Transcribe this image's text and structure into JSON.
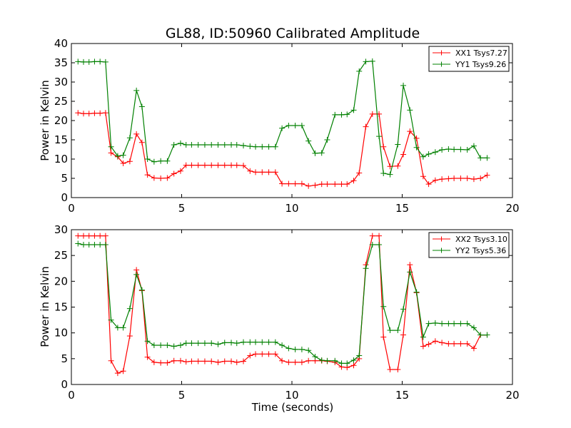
{
  "chart_data": [
    {
      "type": "line",
      "title": "GL88, ID:50960 Calibrated Amplitude",
      "xlabel": "",
      "ylabel": "Power in Kelvin",
      "xlim": [
        0,
        20
      ],
      "ylim": [
        0,
        40
      ],
      "xticks": [
        0,
        5,
        10,
        15,
        20
      ],
      "yticks": [
        0,
        5,
        10,
        15,
        20,
        25,
        30,
        35,
        40
      ],
      "grid": false,
      "legend_position": "top-right",
      "series": [
        {
          "name": "XX1 Tsys7.27",
          "color": "#ff0000",
          "x": [
            0.3,
            0.55,
            0.8,
            1.05,
            1.3,
            1.55,
            1.8,
            2.1,
            2.35,
            2.65,
            2.95,
            3.2,
            3.45,
            3.75,
            4.05,
            4.35,
            4.65,
            4.95,
            5.2,
            5.45,
            5.75,
            6.05,
            6.35,
            6.65,
            6.95,
            7.25,
            7.5,
            7.8,
            8.1,
            8.35,
            8.65,
            8.95,
            9.25,
            9.55,
            9.85,
            10.15,
            10.45,
            10.75,
            11.05,
            11.35,
            11.6,
            11.95,
            12.25,
            12.5,
            12.8,
            13.05,
            13.35,
            13.65,
            13.95,
            14.15,
            14.45,
            14.8,
            15.05,
            15.35,
            15.65,
            15.95,
            16.2,
            16.5,
            16.8,
            17.1,
            17.35,
            17.65,
            17.95,
            18.25,
            18.55,
            18.85
          ],
          "values": [
            22.0,
            21.8,
            21.8,
            21.9,
            21.9,
            22.0,
            11.6,
            10.6,
            8.9,
            9.4,
            16.5,
            14.3,
            5.9,
            5.1,
            5.0,
            5.1,
            6.2,
            6.9,
            8.4,
            8.4,
            8.4,
            8.4,
            8.4,
            8.4,
            8.4,
            8.4,
            8.4,
            8.3,
            6.9,
            6.6,
            6.6,
            6.6,
            6.6,
            3.6,
            3.6,
            3.6,
            3.6,
            3.0,
            3.2,
            3.5,
            3.5,
            3.5,
            3.5,
            3.5,
            4.4,
            6.4,
            18.4,
            21.7,
            21.7,
            13.2,
            8.1,
            8.2,
            11.2,
            17.2,
            15.4,
            5.5,
            3.5,
            4.5,
            4.8,
            4.9,
            5.0,
            5.0,
            5.0,
            4.8,
            5.0,
            5.8
          ]
        },
        {
          "name": "YY1 Tsys9.26",
          "color": "#008000",
          "x": [
            0.3,
            0.55,
            0.8,
            1.05,
            1.3,
            1.55,
            1.8,
            2.1,
            2.35,
            2.65,
            2.95,
            3.2,
            3.45,
            3.75,
            4.05,
            4.35,
            4.65,
            4.95,
            5.2,
            5.45,
            5.75,
            6.05,
            6.35,
            6.65,
            6.95,
            7.25,
            7.5,
            7.8,
            8.1,
            8.35,
            8.65,
            8.95,
            9.25,
            9.55,
            9.85,
            10.15,
            10.45,
            10.75,
            11.05,
            11.35,
            11.6,
            11.95,
            12.25,
            12.5,
            12.8,
            13.05,
            13.35,
            13.65,
            13.95,
            14.15,
            14.45,
            14.8,
            15.05,
            15.35,
            15.65,
            15.95,
            16.2,
            16.5,
            16.8,
            17.1,
            17.35,
            17.65,
            17.95,
            18.25,
            18.55,
            18.85
          ],
          "values": [
            35.3,
            35.2,
            35.2,
            35.3,
            35.3,
            35.2,
            13.2,
            10.8,
            11.0,
            15.5,
            27.8,
            23.6,
            10.0,
            9.3,
            9.5,
            9.5,
            13.7,
            14.1,
            13.7,
            13.7,
            13.7,
            13.7,
            13.7,
            13.7,
            13.7,
            13.7,
            13.7,
            13.5,
            13.3,
            13.2,
            13.2,
            13.2,
            13.2,
            18.0,
            18.7,
            18.7,
            18.7,
            14.7,
            11.5,
            11.6,
            15.0,
            21.5,
            21.5,
            21.6,
            22.7,
            32.8,
            35.3,
            35.4,
            15.9,
            6.3,
            6.0,
            13.8,
            29.1,
            22.7,
            13.0,
            10.6,
            11.3,
            11.8,
            12.4,
            12.6,
            12.5,
            12.5,
            12.4,
            13.4,
            10.3,
            10.3
          ]
        }
      ]
    },
    {
      "type": "line",
      "title": "",
      "xlabel": "Time (seconds)",
      "ylabel": "Power in Kelvin",
      "xlim": [
        0,
        20
      ],
      "ylim": [
        0,
        30
      ],
      "xticks": [
        0,
        5,
        10,
        15,
        20
      ],
      "yticks": [
        0,
        5,
        10,
        15,
        20,
        25,
        30
      ],
      "grid": false,
      "legend_position": "top-right",
      "series": [
        {
          "name": "XX2 Tsys3.10",
          "color": "#ff0000",
          "x": [
            0.3,
            0.55,
            0.8,
            1.05,
            1.3,
            1.55,
            1.8,
            2.1,
            2.35,
            2.65,
            2.95,
            3.2,
            3.45,
            3.75,
            4.05,
            4.35,
            4.65,
            4.95,
            5.2,
            5.45,
            5.75,
            6.05,
            6.35,
            6.65,
            6.95,
            7.25,
            7.5,
            7.8,
            8.1,
            8.35,
            8.65,
            8.95,
            9.25,
            9.55,
            9.85,
            10.15,
            10.45,
            10.75,
            11.05,
            11.35,
            11.6,
            11.95,
            12.25,
            12.5,
            12.8,
            13.05,
            13.35,
            13.65,
            13.95,
            14.15,
            14.45,
            14.8,
            15.05,
            15.35,
            15.65,
            15.95,
            16.2,
            16.5,
            16.8,
            17.1,
            17.35,
            17.65,
            17.95,
            18.25,
            18.55,
            18.85
          ],
          "values": [
            28.8,
            28.8,
            28.8,
            28.8,
            28.8,
            28.8,
            4.6,
            2.2,
            2.6,
            9.4,
            22.2,
            18.2,
            5.3,
            4.3,
            4.2,
            4.2,
            4.6,
            4.6,
            4.4,
            4.5,
            4.5,
            4.5,
            4.5,
            4.3,
            4.5,
            4.5,
            4.3,
            4.5,
            5.6,
            5.9,
            5.9,
            5.9,
            5.9,
            4.6,
            4.3,
            4.3,
            4.3,
            4.6,
            4.6,
            4.6,
            4.5,
            4.3,
            3.4,
            3.3,
            3.7,
            5.0,
            23.2,
            28.8,
            28.8,
            9.2,
            2.9,
            2.9,
            9.6,
            23.2,
            17.8,
            7.4,
            7.8,
            8.4,
            8.1,
            7.9,
            7.9,
            7.9,
            7.9,
            7.0,
            9.6,
            9.6
          ]
        },
        {
          "name": "YY2 Tsys5.36",
          "color": "#008000",
          "x": [
            0.3,
            0.55,
            0.8,
            1.05,
            1.3,
            1.55,
            1.8,
            2.1,
            2.35,
            2.65,
            2.95,
            3.2,
            3.45,
            3.75,
            4.05,
            4.35,
            4.65,
            4.95,
            5.2,
            5.45,
            5.75,
            6.05,
            6.35,
            6.65,
            6.95,
            7.25,
            7.5,
            7.8,
            8.1,
            8.35,
            8.65,
            8.95,
            9.25,
            9.55,
            9.85,
            10.15,
            10.45,
            10.75,
            11.05,
            11.35,
            11.6,
            11.95,
            12.25,
            12.5,
            12.8,
            13.05,
            13.35,
            13.65,
            13.95,
            14.15,
            14.45,
            14.8,
            15.05,
            15.35,
            15.65,
            15.95,
            16.2,
            16.5,
            16.8,
            17.1,
            17.35,
            17.65,
            17.95,
            18.25,
            18.55,
            18.85
          ],
          "values": [
            27.3,
            27.1,
            27.1,
            27.1,
            27.1,
            27.1,
            12.5,
            11.0,
            11.0,
            14.7,
            21.3,
            18.3,
            8.4,
            7.6,
            7.6,
            7.6,
            7.4,
            7.6,
            8.0,
            8.0,
            8.0,
            8.0,
            8.0,
            7.8,
            8.1,
            8.1,
            8.0,
            8.2,
            8.2,
            8.2,
            8.2,
            8.2,
            8.2,
            7.6,
            7.0,
            6.8,
            6.8,
            6.6,
            5.4,
            4.7,
            4.6,
            4.6,
            4.1,
            4.1,
            4.7,
            5.6,
            22.5,
            27.1,
            27.1,
            15.1,
            10.5,
            10.5,
            14.6,
            21.8,
            17.9,
            9.2,
            11.8,
            11.9,
            11.8,
            11.8,
            11.8,
            11.8,
            11.8,
            11.0,
            9.6,
            9.6
          ]
        }
      ]
    }
  ]
}
